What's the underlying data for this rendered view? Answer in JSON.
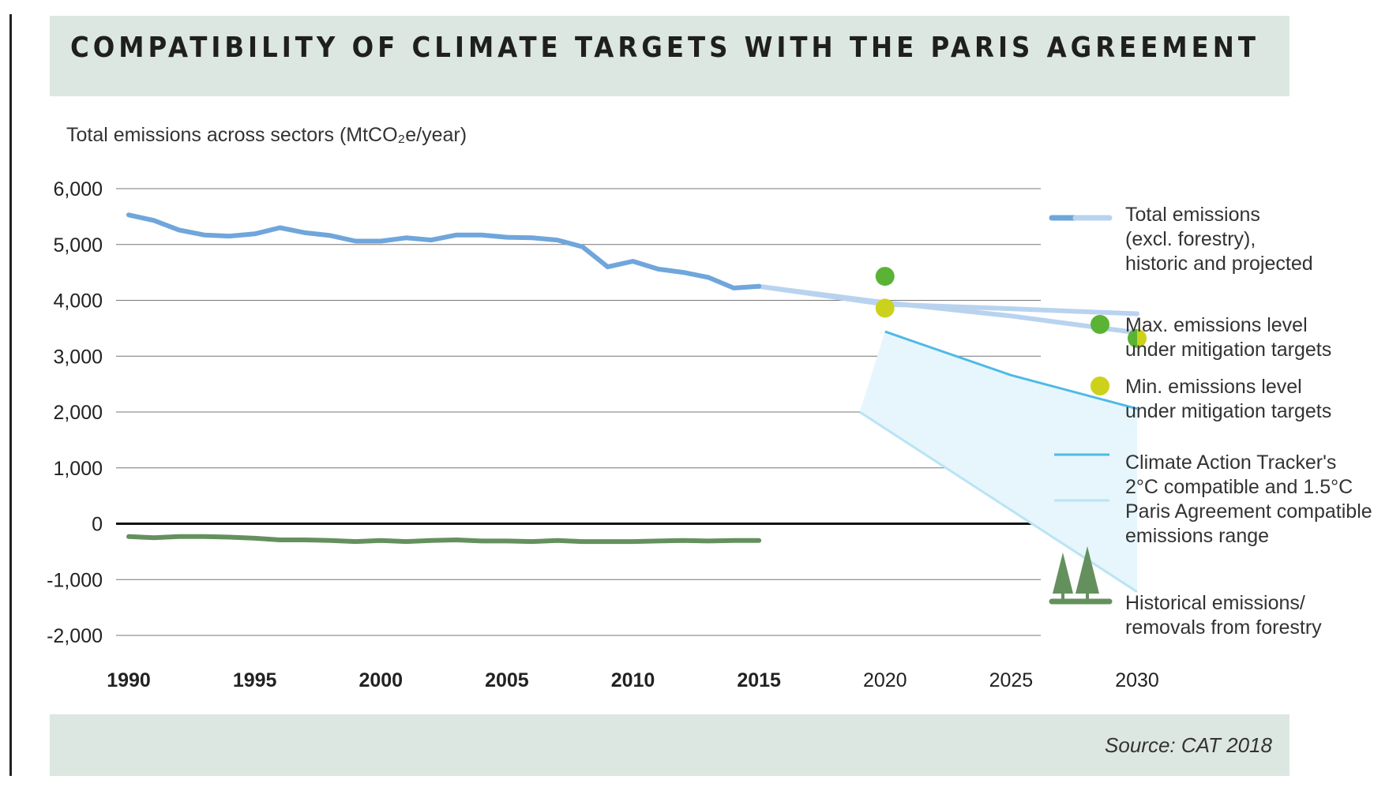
{
  "header": {
    "title": "COMPATIBILITY OF CLIMATE TARGETS WITH THE PARIS AGREEMENT"
  },
  "footer": {
    "source": "Source: CAT 2018"
  },
  "colors": {
    "historic": "#6fa6db",
    "projected": "#b9d3ef",
    "range_top": "#4fb9e6",
    "range_bottom": "#b9e4f4",
    "range_fill": "#e6f6fc",
    "max_dot": "#5ab334",
    "min_dot": "#ccd21c",
    "forestry": "#64905e",
    "grid": "#777777",
    "zero": "#111111"
  },
  "chart_data": {
    "type": "line",
    "ylabel": "Total emissions across sectors (MtCO₂e/year)",
    "ylim": [
      -2000,
      6000
    ],
    "xlim": [
      1990,
      2030
    ],
    "yticks": [
      6000,
      5000,
      4000,
      3000,
      2000,
      1000,
      0,
      -1000,
      -2000
    ],
    "ytick_labels": [
      "6,000",
      "5,000",
      "4,000",
      "3,000",
      "2,000",
      "1,000",
      "0",
      "-1,000",
      "-2,000"
    ],
    "xticks": [
      {
        "value": 1990,
        "label": "1990",
        "bold": true
      },
      {
        "value": 1995,
        "label": "1995",
        "bold": true
      },
      {
        "value": 2000,
        "label": "2000",
        "bold": true
      },
      {
        "value": 2005,
        "label": "2005",
        "bold": true
      },
      {
        "value": 2010,
        "label": "2010",
        "bold": true
      },
      {
        "value": 2015,
        "label": "2015",
        "bold": true
      },
      {
        "value": 2020,
        "label": "2020",
        "bold": false
      },
      {
        "value": 2025,
        "label": "2025",
        "bold": false
      },
      {
        "value": 2030,
        "label": "2030",
        "bold": false
      }
    ],
    "grid": true,
    "legend_position": "right",
    "series": {
      "historic": {
        "x": [
          1990,
          1991,
          1992,
          1993,
          1994,
          1995,
          1996,
          1997,
          1998,
          1999,
          2000,
          2001,
          2002,
          2003,
          2004,
          2005,
          2006,
          2007,
          2008,
          2009,
          2010,
          2011,
          2012,
          2013,
          2014,
          2015
        ],
        "y": [
          5530,
          5430,
          5260,
          5170,
          5150,
          5190,
          5300,
          5210,
          5160,
          5060,
          5060,
          5120,
          5080,
          5170,
          5170,
          5130,
          5120,
          5080,
          4960,
          4600,
          4700,
          4560,
          4500,
          4410,
          4220,
          4250
        ]
      },
      "projected_upper": {
        "x": [
          2015,
          2020,
          2025,
          2030
        ],
        "y": [
          4250,
          3930,
          3850,
          3760
        ]
      },
      "projected_lower": {
        "x": [
          2015,
          2020,
          2025,
          2030
        ],
        "y": [
          4250,
          3960,
          3720,
          3420
        ]
      },
      "cat_2c_upper": {
        "x": [
          2020,
          2025,
          2030
        ],
        "y": [
          3440,
          2660,
          2060
        ]
      },
      "cat_15c_lower": {
        "x": [
          2019,
          2030
        ],
        "y": [
          2000,
          -1220
        ]
      },
      "forestry": {
        "x": [
          1990,
          1991,
          1992,
          1993,
          1994,
          1995,
          1996,
          1997,
          1998,
          1999,
          2000,
          2001,
          2002,
          2003,
          2004,
          2005,
          2006,
          2007,
          2008,
          2009,
          2010,
          2011,
          2012,
          2013,
          2014,
          2015
        ],
        "y": [
          -230,
          -250,
          -230,
          -230,
          -240,
          -260,
          -290,
          -290,
          -300,
          -320,
          -300,
          -320,
          -300,
          -290,
          -310,
          -310,
          -320,
          -300,
          -320,
          -320,
          -320,
          -310,
          -300,
          -310,
          -300,
          -300
        ]
      },
      "max_targets": [
        {
          "x": 2020,
          "y": 4430
        },
        {
          "x": 2030,
          "y": 3320
        }
      ],
      "min_targets": [
        {
          "x": 2020,
          "y": 3860
        },
        {
          "x": 2030,
          "y": 3320
        }
      ]
    },
    "legend": [
      {
        "id": "total",
        "lines": [
          "Total emissions",
          "(excl. forestry),",
          "historic and projected"
        ]
      },
      {
        "id": "max",
        "lines": [
          "Max. emissions level",
          "under mitigation targets"
        ]
      },
      {
        "id": "min",
        "lines": [
          "Min. emissions level",
          "under mitigation targets"
        ]
      },
      {
        "id": "cat",
        "lines": [
          "Climate Action Tracker's",
          "2°C compatible and 1.5°C",
          "Paris Agreement compatible",
          "emissions range"
        ]
      },
      {
        "id": "forestry",
        "lines": [
          "Historical emissions/",
          "removals from forestry"
        ]
      }
    ]
  }
}
